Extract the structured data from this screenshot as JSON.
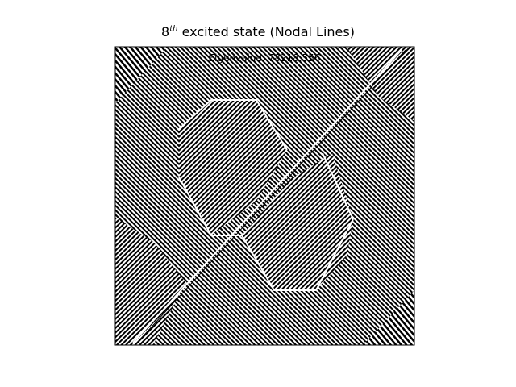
{
  "figure": {
    "background": "#ffffff"
  },
  "chart_data": {
    "type": "heatmap",
    "title": {
      "base": "8",
      "superscript": "th",
      "rest": " excited state (Nodal Lines)"
    },
    "annotation": "Eigenvalue: 78218.556",
    "xlabel": "",
    "ylabel": "",
    "axes_visible": false,
    "colormap": [
      "#000000",
      "#ffffff"
    ],
    "description_values": {
      "state_index": 8,
      "eigenvalue": 78218.556
    }
  }
}
